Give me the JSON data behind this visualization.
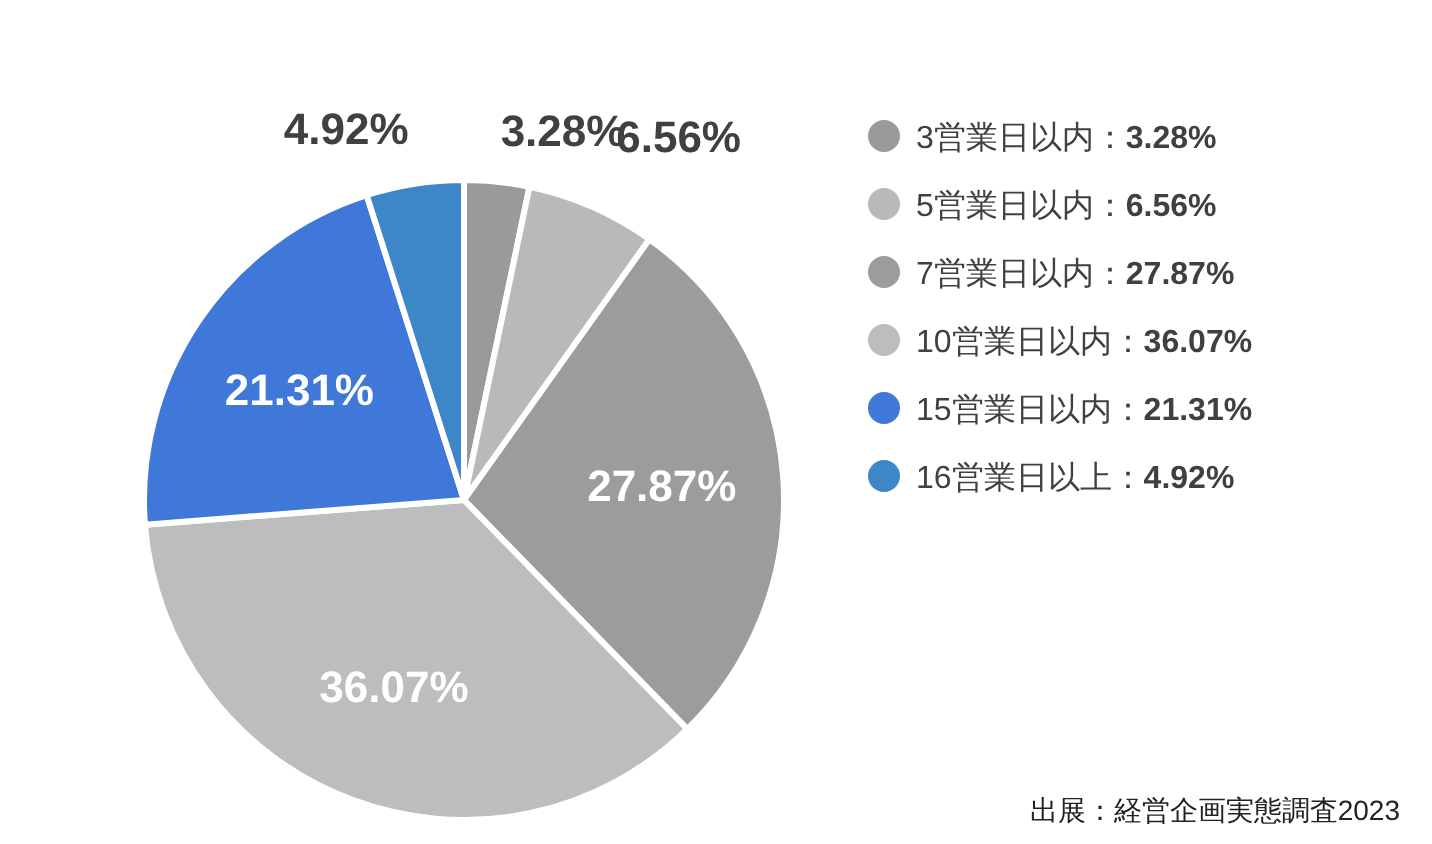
{
  "chart_data": {
    "type": "pie",
    "categories": [
      "3営業日以内",
      "5営業日以内",
      "7営業日以内",
      "10営業日以内",
      "15営業日以内",
      "16営業日以上"
    ],
    "values": [
      3.28,
      6.56,
      27.87,
      36.07,
      21.31,
      4.92
    ],
    "value_labels": [
      "3.28%",
      "6.56%",
      "27.87%",
      "36.07%",
      "21.31%",
      "4.92%"
    ],
    "colors": [
      "#9a9a9a",
      "#b9b9b9",
      "#9c9c9c",
      "#bdbdbd",
      "#3f78d9",
      "#3d87c8"
    ],
    "legend": "right",
    "annotations": [
      "出展：経営企画実態調査2023"
    ]
  }
}
